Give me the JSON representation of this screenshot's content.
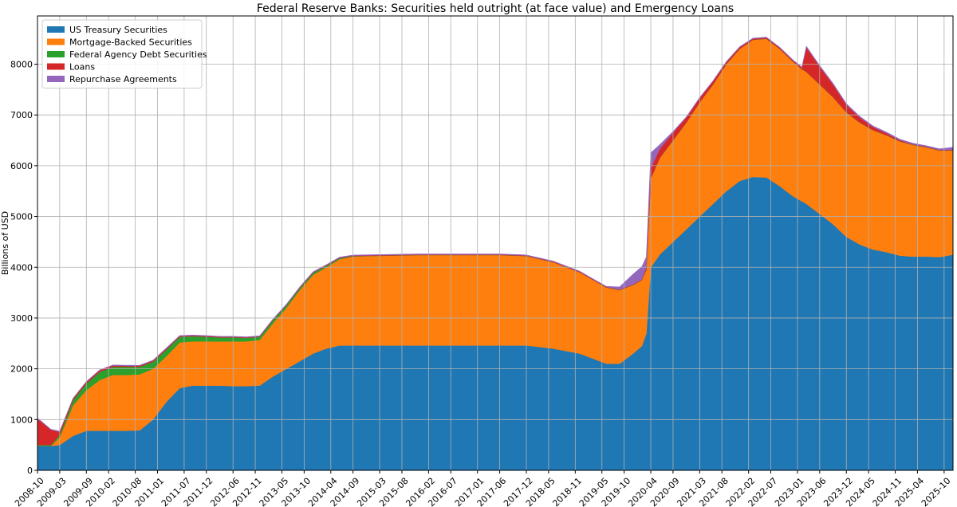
{
  "chart_data": {
    "type": "area",
    "stacked": true,
    "title": "Federal Reserve Banks: Securities held outright (at face value) and Emergency Loans",
    "xlabel": "",
    "ylabel": "Billions of USD",
    "ylim": [
      0,
      8950
    ],
    "xlim": [
      "2008-10",
      "2025-12"
    ],
    "grid": true,
    "legend_position": "top-left",
    "y_ticks": [
      0,
      1000,
      2000,
      3000,
      4000,
      5000,
      6000,
      7000,
      8000
    ],
    "x_tick_labels": [
      "2008-10",
      "2009-03",
      "2009-09",
      "2010-02",
      "2010-08",
      "2011-01",
      "2011-07",
      "2011-12",
      "2012-06",
      "2012-11",
      "2013-05",
      "2013-10",
      "2014-04",
      "2014-09",
      "2015-03",
      "2015-08",
      "2016-02",
      "2016-07",
      "2017-01",
      "2017-06",
      "2017-12",
      "2018-05",
      "2018-11",
      "2019-05",
      "2019-10",
      "2020-04",
      "2020-09",
      "2021-03",
      "2021-08",
      "2022-02",
      "2022-07",
      "2023-01",
      "2023-06",
      "2023-12",
      "2024-05",
      "2024-11",
      "2025-04",
      "2025-10"
    ],
    "x": [
      "2008-10",
      "2009-01",
      "2009-03",
      "2009-06",
      "2009-09",
      "2009-12",
      "2010-03",
      "2010-06",
      "2010-09",
      "2010-12",
      "2011-03",
      "2011-06",
      "2011-09",
      "2011-12",
      "2012-03",
      "2012-06",
      "2012-09",
      "2012-12",
      "2013-03",
      "2013-06",
      "2013-09",
      "2013-12",
      "2014-03",
      "2014-06",
      "2014-09",
      "2014-12",
      "2015-06",
      "2015-12",
      "2016-06",
      "2016-12",
      "2017-06",
      "2017-12",
      "2018-06",
      "2018-12",
      "2019-03",
      "2019-06",
      "2019-09",
      "2019-12",
      "2020-02",
      "2020-03",
      "2020-04",
      "2020-06",
      "2020-09",
      "2020-12",
      "2021-03",
      "2021-06",
      "2021-09",
      "2021-12",
      "2022-03",
      "2022-06",
      "2022-09",
      "2022-12",
      "2023-02",
      "2023-03",
      "2023-06",
      "2023-09",
      "2023-12",
      "2024-03",
      "2024-06",
      "2024-09",
      "2024-12",
      "2025-03",
      "2025-06",
      "2025-09",
      "2025-12"
    ],
    "series": [
      {
        "name": "US Treasury Securities",
        "color": "#1f77b4",
        "values": [
          480,
          480,
          500,
          680,
          780,
          780,
          780,
          780,
          790,
          1000,
          1350,
          1620,
          1670,
          1670,
          1670,
          1660,
          1660,
          1670,
          1850,
          2000,
          2150,
          2300,
          2400,
          2460,
          2460,
          2460,
          2460,
          2460,
          2460,
          2460,
          2460,
          2460,
          2400,
          2300,
          2200,
          2100,
          2100,
          2300,
          2450,
          2700,
          4000,
          4250,
          4500,
          4750,
          5000,
          5250,
          5500,
          5700,
          5780,
          5770,
          5600,
          5400,
          5300,
          5250,
          5050,
          4850,
          4600,
          4450,
          4350,
          4300,
          4230,
          4210,
          4210,
          4200,
          4250
        ]
      },
      {
        "name": "Mortgage-Backed Securities",
        "color": "#ff7f0e",
        "values": [
          0,
          0,
          150,
          600,
          800,
          1000,
          1100,
          1100,
          1100,
          1000,
          900,
          900,
          870,
          870,
          870,
          880,
          880,
          900,
          1050,
          1200,
          1400,
          1550,
          1600,
          1700,
          1750,
          1760,
          1770,
          1780,
          1780,
          1780,
          1780,
          1760,
          1700,
          1600,
          1550,
          1500,
          1450,
          1350,
          1300,
          1250,
          1750,
          1900,
          2000,
          2100,
          2250,
          2350,
          2500,
          2600,
          2700,
          2730,
          2700,
          2650,
          2600,
          2600,
          2550,
          2500,
          2450,
          2400,
          2350,
          2300,
          2250,
          2200,
          2150,
          2100,
          2050
        ]
      },
      {
        "name": "Federal Agency Debt Securities",
        "color": "#2ca02c",
        "values": [
          20,
          20,
          50,
          100,
          130,
          160,
          160,
          160,
          150,
          140,
          130,
          110,
          100,
          90,
          80,
          80,
          70,
          60,
          60,
          50,
          40,
          40,
          30,
          20,
          10,
          5,
          5,
          3,
          3,
          3,
          3,
          3,
          3,
          3,
          3,
          3,
          3,
          3,
          3,
          3,
          3,
          3,
          3,
          3,
          3,
          3,
          3,
          3,
          3,
          3,
          3,
          3,
          3,
          3,
          3,
          3,
          3,
          3,
          3,
          3,
          3,
          3,
          3,
          3,
          3
        ]
      },
      {
        "name": "Loans",
        "color": "#d62728",
        "values": [
          520,
          300,
          60,
          30,
          30,
          30,
          25,
          20,
          20,
          20,
          20,
          15,
          15,
          15,
          10,
          10,
          10,
          10,
          10,
          10,
          10,
          10,
          10,
          10,
          10,
          10,
          10,
          10,
          10,
          10,
          10,
          10,
          10,
          10,
          10,
          10,
          10,
          10,
          10,
          50,
          200,
          180,
          150,
          100,
          80,
          60,
          40,
          30,
          20,
          20,
          20,
          20,
          30,
          480,
          350,
          250,
          150,
          100,
          60,
          40,
          20,
          10,
          10,
          10,
          10
        ]
      },
      {
        "name": "Repurchase Agreements",
        "color": "#9467bd",
        "values": [
          10,
          10,
          10,
          10,
          10,
          10,
          10,
          10,
          10,
          10,
          10,
          10,
          10,
          10,
          10,
          10,
          10,
          10,
          10,
          10,
          10,
          10,
          10,
          10,
          10,
          10,
          10,
          10,
          10,
          10,
          10,
          10,
          10,
          10,
          10,
          10,
          50,
          200,
          250,
          200,
          300,
          80,
          20,
          10,
          10,
          10,
          10,
          10,
          10,
          10,
          10,
          10,
          10,
          20,
          20,
          20,
          20,
          20,
          20,
          20,
          20,
          20,
          20,
          20,
          50
        ]
      }
    ]
  }
}
